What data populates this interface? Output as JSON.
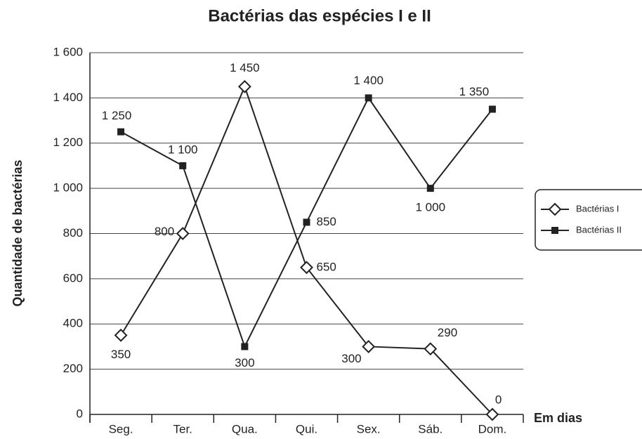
{
  "chart_data": {
    "type": "line",
    "title": "Bactérias das espécies I e II",
    "xlabel": "Em dias",
    "ylabel": "Quantidade de bactérias",
    "categories": [
      "Seg.",
      "Ter.",
      "Qua.",
      "Qui.",
      "Sex.",
      "Sáb.",
      "Dom."
    ],
    "series": [
      {
        "name": "Bactérias I",
        "color": "#222222",
        "marker": "diamond",
        "values": [
          350,
          800,
          1450,
          650,
          300,
          290,
          0
        ],
        "value_labels": [
          "350",
          "800",
          "1 450",
          "650",
          "300",
          "290",
          "0"
        ]
      },
      {
        "name": "Bactérias II",
        "color": "#222222",
        "marker": "square",
        "values": [
          1250,
          1100,
          300,
          850,
          1400,
          1000,
          1350
        ],
        "value_labels": [
          "1 250",
          "1 100",
          "300",
          "850",
          "1 400",
          "1 000",
          "1 350"
        ]
      }
    ],
    "ylim": [
      0,
      1600
    ],
    "yticks": [
      0,
      200,
      400,
      600,
      800,
      {
        "value": 1000,
        "label": "1 000"
      },
      {
        "value": 1200,
        "label": "1 200"
      },
      {
        "value": 1400,
        "label": "1 400"
      },
      {
        "value": 1600,
        "label": "1 600"
      }
    ],
    "grid": true,
    "legend": "right"
  }
}
